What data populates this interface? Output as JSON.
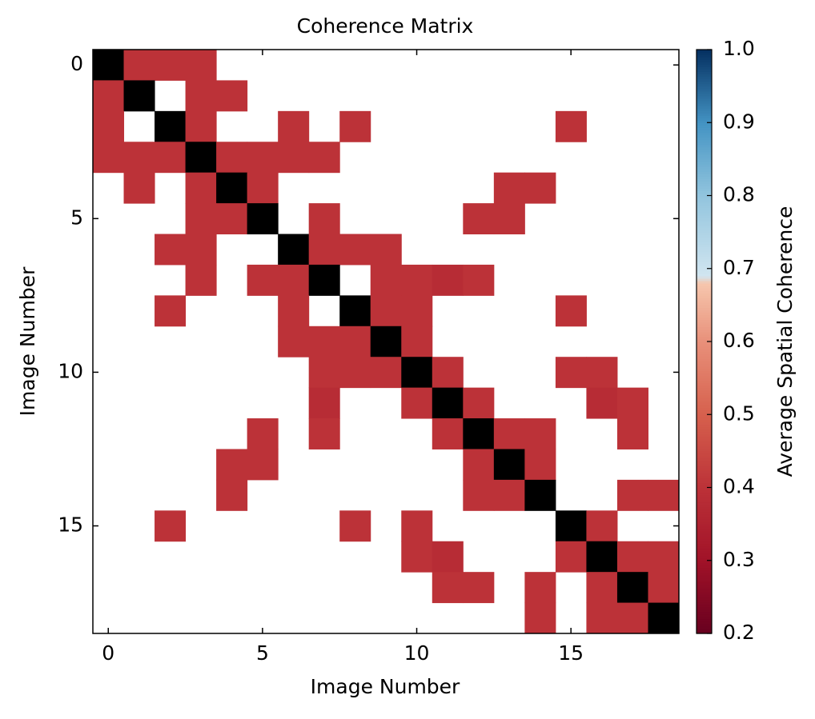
{
  "chart_data": {
    "type": "heatmap",
    "title": "Coherence Matrix",
    "xlabel": "Image Number",
    "ylabel": "Image Number",
    "colorbar_label": "Average Spatial Coherence",
    "xlim": [
      -0.5,
      18.5
    ],
    "ylim": [
      -0.5,
      18.5
    ],
    "y_inverted": true,
    "xticks": [
      0,
      5,
      10,
      15
    ],
    "yticks": [
      0,
      5,
      10,
      15
    ],
    "colorbar_lim": [
      0.2,
      1.0
    ],
    "colorbar_ticks": [
      0.2,
      0.3,
      0.4,
      0.5,
      0.6,
      0.7,
      0.8,
      0.9,
      {
        "value": 1.0,
        "label": "1.0"
      }
    ],
    "colormap": [
      [
        0.2,
        "#67001f"
      ],
      [
        0.3,
        "#a11228"
      ],
      [
        0.4,
        "#bc3238"
      ],
      [
        0.5,
        "#d6604d"
      ],
      [
        0.6,
        "#e8907a"
      ],
      [
        0.68,
        "#f6c6ad"
      ],
      [
        0.69,
        "#d1e5f0"
      ],
      [
        0.8,
        "#92c5de"
      ],
      [
        0.9,
        "#4393c3"
      ],
      [
        1.0,
        "#053061"
      ]
    ],
    "diagonal_color": "#000000",
    "values": [
      [
        null,
        0.4,
        0.4,
        0.4,
        null,
        null,
        null,
        null,
        null,
        null,
        null,
        null,
        null,
        null,
        null,
        null,
        null,
        null,
        null
      ],
      [
        0.4,
        null,
        null,
        0.4,
        0.4,
        null,
        null,
        null,
        null,
        null,
        null,
        null,
        null,
        null,
        null,
        null,
        null,
        null,
        null
      ],
      [
        0.4,
        null,
        null,
        0.4,
        null,
        null,
        0.4,
        null,
        0.4,
        null,
        null,
        null,
        null,
        null,
        null,
        0.4,
        null,
        null,
        null
      ],
      [
        0.4,
        0.4,
        0.4,
        null,
        0.4,
        0.4,
        0.4,
        0.4,
        null,
        null,
        null,
        null,
        null,
        null,
        null,
        null,
        null,
        null,
        null
      ],
      [
        null,
        0.4,
        null,
        0.4,
        null,
        0.4,
        null,
        null,
        null,
        null,
        null,
        null,
        null,
        0.4,
        0.4,
        null,
        null,
        null,
        null
      ],
      [
        null,
        null,
        null,
        0.4,
        0.4,
        null,
        null,
        0.4,
        null,
        null,
        null,
        null,
        0.4,
        0.4,
        null,
        null,
        null,
        null,
        null
      ],
      [
        null,
        null,
        0.4,
        0.4,
        null,
        null,
        null,
        0.4,
        0.4,
        0.4,
        null,
        null,
        null,
        null,
        null,
        null,
        null,
        null,
        null
      ],
      [
        null,
        null,
        null,
        0.4,
        null,
        0.4,
        0.4,
        null,
        null,
        0.4,
        0.4,
        0.38,
        0.4,
        null,
        null,
        null,
        null,
        null,
        null
      ],
      [
        null,
        null,
        0.4,
        null,
        null,
        null,
        0.4,
        null,
        null,
        0.4,
        0.4,
        null,
        null,
        null,
        null,
        0.4,
        null,
        null,
        null
      ],
      [
        null,
        null,
        null,
        null,
        null,
        null,
        0.4,
        0.4,
        0.4,
        null,
        0.4,
        null,
        null,
        null,
        null,
        null,
        null,
        null,
        null
      ],
      [
        null,
        null,
        null,
        null,
        null,
        null,
        null,
        0.4,
        0.4,
        0.4,
        null,
        0.4,
        null,
        null,
        null,
        0.4,
        0.4,
        null,
        null
      ],
      [
        null,
        null,
        null,
        null,
        null,
        null,
        null,
        0.38,
        null,
        null,
        0.4,
        null,
        0.4,
        null,
        null,
        null,
        0.38,
        0.4,
        null
      ],
      [
        null,
        null,
        null,
        null,
        null,
        0.4,
        null,
        0.4,
        null,
        null,
        null,
        0.4,
        null,
        0.4,
        0.4,
        null,
        null,
        0.4,
        null
      ],
      [
        null,
        null,
        null,
        null,
        0.4,
        0.4,
        null,
        null,
        null,
        null,
        null,
        null,
        0.4,
        null,
        0.4,
        null,
        null,
        null,
        null
      ],
      [
        null,
        null,
        null,
        null,
        0.4,
        null,
        null,
        null,
        null,
        null,
        null,
        null,
        0.4,
        0.4,
        null,
        null,
        null,
        0.4,
        0.4
      ],
      [
        null,
        null,
        0.4,
        null,
        null,
        null,
        null,
        null,
        0.4,
        null,
        0.4,
        null,
        null,
        null,
        null,
        null,
        0.4,
        null,
        null
      ],
      [
        null,
        null,
        null,
        null,
        null,
        null,
        null,
        null,
        null,
        null,
        0.4,
        0.38,
        null,
        null,
        null,
        0.4,
        null,
        0.4,
        0.4
      ],
      [
        null,
        null,
        null,
        null,
        null,
        null,
        null,
        null,
        null,
        null,
        null,
        0.4,
        0.4,
        null,
        0.4,
        null,
        0.4,
        null,
        0.4
      ],
      [
        null,
        null,
        null,
        null,
        null,
        null,
        null,
        null,
        null,
        null,
        null,
        null,
        null,
        null,
        0.4,
        null,
        0.4,
        0.4,
        null
      ]
    ]
  }
}
